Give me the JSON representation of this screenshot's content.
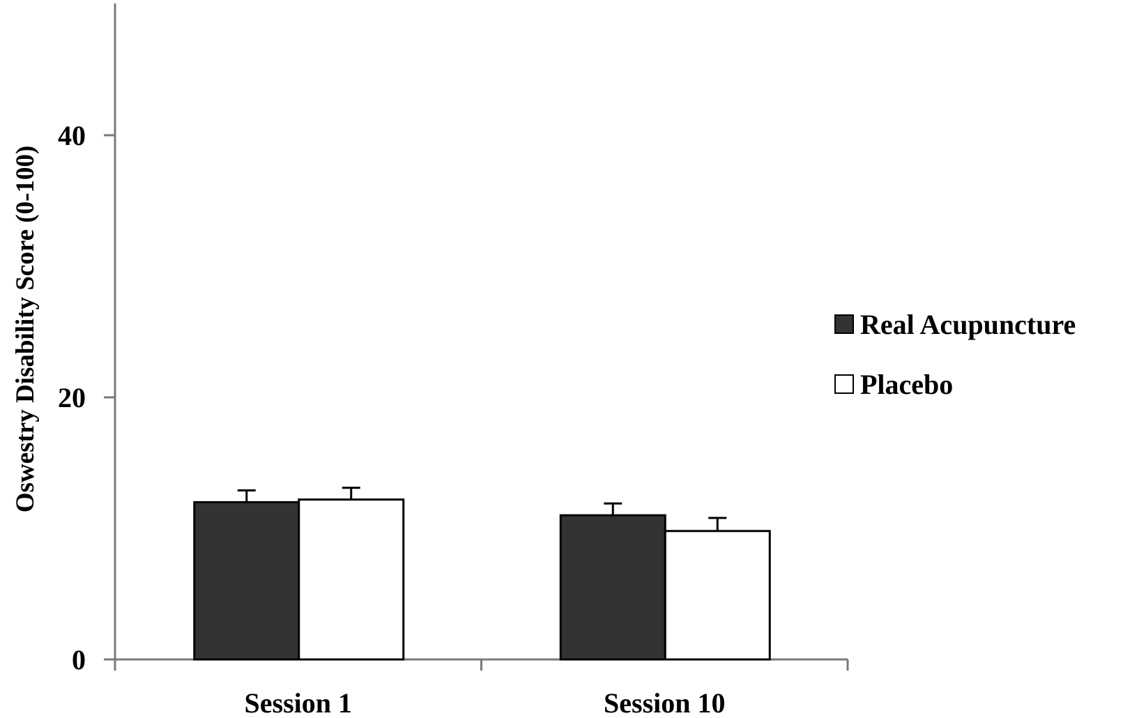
{
  "chart_data": {
    "type": "bar",
    "title": "",
    "xlabel": "",
    "ylabel": "Oswestry Disability Score (0-100)",
    "ylim": [
      0,
      50
    ],
    "yticks": [
      0,
      20,
      40
    ],
    "ytick_labels": [
      "0",
      "20",
      "40"
    ],
    "grid": false,
    "legend_position": "right",
    "categories": [
      "Session 1",
      "Session 10"
    ],
    "series": [
      {
        "name": "Real Acupuncture",
        "color": "#333333",
        "values": [
          12.0,
          11.0
        ],
        "error": [
          0.9,
          0.9
        ]
      },
      {
        "name": "Placebo",
        "color": "#ffffff",
        "values": [
          12.2,
          9.8
        ],
        "error": [
          0.9,
          1.0
        ]
      }
    ]
  },
  "colors": {
    "axis": "#7a7a7a",
    "bar_outline": "#000000",
    "dark_bar": "#333333",
    "light_bar": "#ffffff"
  }
}
